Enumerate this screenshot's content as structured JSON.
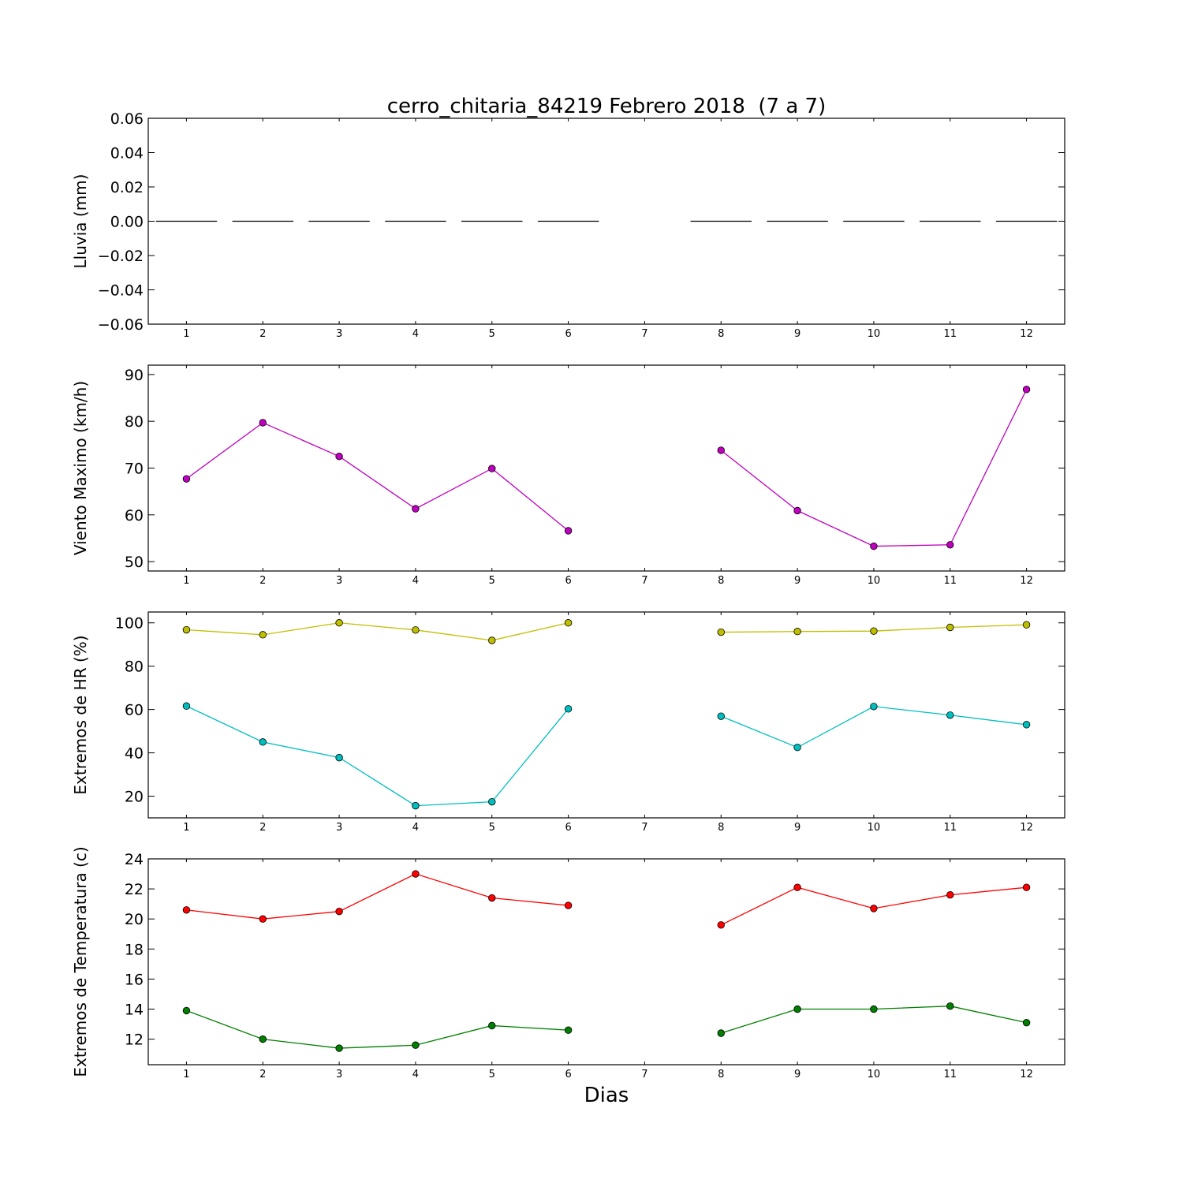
{
  "chart_data": [
    {
      "type": "bar",
      "title": "cerro_chitaria_84219 Febrero 2018  (7 a 7)",
      "ylabel": "Lluvia (mm)",
      "xlabel": "",
      "categories": [
        "1",
        "2",
        "3",
        "4",
        "5",
        "6",
        "7",
        "8",
        "9",
        "10",
        "11",
        "12"
      ],
      "ylim": [
        -0.06,
        0.06
      ],
      "yticks": [
        0.06,
        0.04,
        0.02,
        0.0,
        -0.02,
        -0.04,
        -0.06
      ],
      "ytick_labels": [
        "0.06",
        "0.04",
        "0.02",
        "0.00",
        "−0.02",
        "−0.04",
        "−0.06"
      ],
      "series": [
        {
          "values": [
            0,
            0,
            0,
            0,
            0,
            0,
            null,
            0,
            0,
            0,
            0,
            0
          ],
          "color": "#000000"
        }
      ]
    },
    {
      "type": "line",
      "title": "",
      "ylabel": "Viento Maximo (km/h)",
      "xlabel": "",
      "categories": [
        "1",
        "2",
        "3",
        "4",
        "5",
        "6",
        "7",
        "8",
        "9",
        "10",
        "11",
        "12"
      ],
      "ylim": [
        48,
        92
      ],
      "yticks": [
        90,
        80,
        70,
        60,
        50
      ],
      "ytick_labels": [
        "90",
        "80",
        "70",
        "60",
        "50"
      ],
      "series": [
        {
          "values": [
            67.7,
            79.7,
            72.5,
            61.3,
            69.9,
            56.6,
            null,
            73.8,
            60.9,
            53.3,
            53.6,
            86.8
          ],
          "color": "#bf00bf"
        }
      ]
    },
    {
      "type": "line",
      "title": "",
      "ylabel": "Extremos de HR (%)",
      "xlabel": "",
      "categories": [
        "1",
        "2",
        "3",
        "4",
        "5",
        "6",
        "7",
        "8",
        "9",
        "10",
        "11",
        "12"
      ],
      "ylim": [
        10,
        105
      ],
      "yticks": [
        100,
        80,
        60,
        40,
        20
      ],
      "ytick_labels": [
        "100",
        "80",
        "60",
        "40",
        "20"
      ],
      "series": [
        {
          "values": [
            96.8,
            94.5,
            100,
            96.7,
            91.9,
            100,
            null,
            95.7,
            96,
            96.2,
            97.9,
            99.1
          ],
          "color": "#bfbf00"
        },
        {
          "values": [
            61.6,
            45,
            37.8,
            15.6,
            17.4,
            60.3,
            null,
            56.9,
            42.5,
            61.4,
            57.4,
            53
          ],
          "color": "#00bfbf"
        }
      ]
    },
    {
      "type": "line",
      "title": "",
      "ylabel": "Extremos de Temperatura (c)",
      "xlabel": "Dias",
      "categories": [
        "1",
        "2",
        "3",
        "4",
        "5",
        "6",
        "7",
        "8",
        "9",
        "10",
        "11",
        "12"
      ],
      "ylim": [
        10.3,
        24
      ],
      "yticks": [
        24,
        22,
        20,
        18,
        16,
        14,
        12
      ],
      "ytick_labels": [
        "24",
        "22",
        "20",
        "18",
        "16",
        "14",
        "12"
      ],
      "series": [
        {
          "values": [
            20.6,
            20,
            20.5,
            23,
            21.4,
            20.9,
            null,
            19.6,
            22.1,
            20.7,
            21.6,
            22.1
          ],
          "color": "#ff0000"
        },
        {
          "values": [
            13.9,
            12,
            11.4,
            11.6,
            12.9,
            12.6,
            null,
            12.4,
            14,
            14,
            14.2,
            13.1
          ],
          "color": "#007f00"
        }
      ]
    }
  ]
}
